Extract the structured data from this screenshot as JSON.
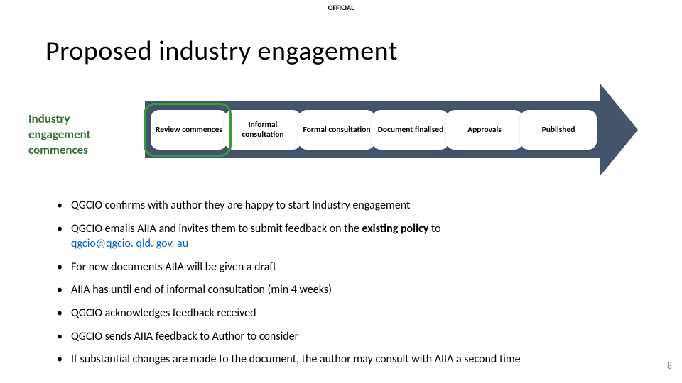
{
  "classification": "OFFICIAL",
  "title": "Proposed industry engagement",
  "leftLabel": "Industry engagement commences",
  "stages": [
    "Review commences",
    "Informal consultation",
    "Formal consultation",
    "Document finalised",
    "Approvals",
    "Published"
  ],
  "arrowColor": "#44546a",
  "highlightColor": "#3b9b3b",
  "leftLabelColor": "#3b6e3b",
  "stageBg": "#ffffff",
  "linkColor": "#0563c1",
  "bullets": {
    "b1": "QGCIO confirms with author they are happy to start Industry engagement",
    "b2_pre": "QGCIO emails AIIA and invites them to submit feedback on the ",
    "b2_bold": "existing policy",
    "b2_post": " to ",
    "b2_link": "qgcio@qgcio. qld. gov. au",
    "b3": "For new documents AIIA will be given a draft",
    "b4": "AIIA has until end of informal consultation (min 4 weeks)",
    "b5": "QGCIO acknowledges feedback received",
    "b6": "QGCIO sends AIIA feedback to Author to consider",
    "b7": "If substantial changes are made to the document, the author may consult with AIIA a second time"
  },
  "pageNumber": "8"
}
